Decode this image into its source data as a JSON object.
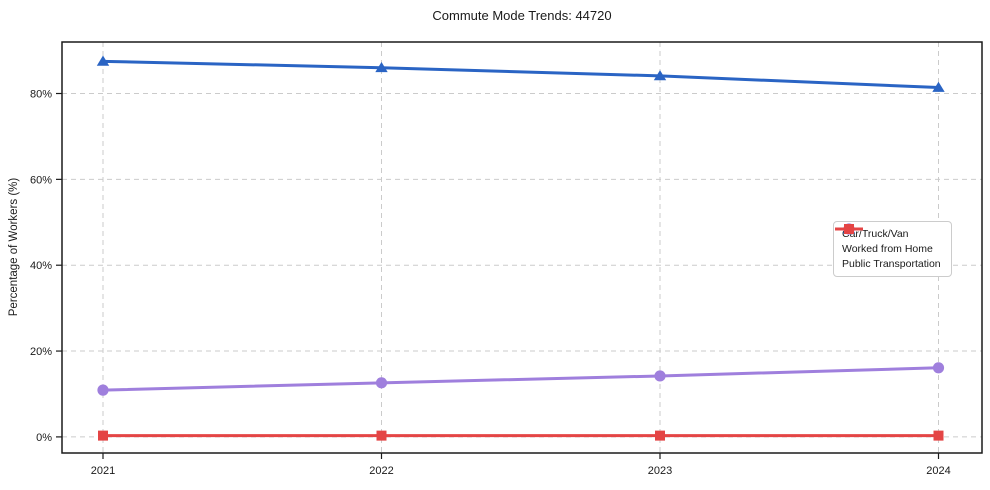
{
  "chart_data": {
    "type": "line",
    "title": "Commute Mode Trends: 44720",
    "xlabel": "",
    "ylabel": "Percentage of Workers (%)",
    "categories": [
      "2021",
      "2022",
      "2023",
      "2024"
    ],
    "series": [
      {
        "name": "Car/Truck/Van",
        "color": "#2a64c4",
        "marker": "triangle",
        "values": [
          87.5,
          86.0,
          84.1,
          81.4
        ]
      },
      {
        "name": "Worked from Home",
        "color": "#9f7fdd",
        "marker": "circle",
        "values": [
          10.9,
          12.6,
          14.2,
          16.1
        ]
      },
      {
        "name": "Public Transportation",
        "color": "#e44545",
        "marker": "square",
        "values": [
          0.3,
          0.3,
          0.3,
          0.3
        ]
      }
    ],
    "yticks": [
      {
        "value": 0,
        "label": "0%"
      },
      {
        "value": 20,
        "label": "20%"
      },
      {
        "value": 40,
        "label": "40%"
      },
      {
        "value": 60,
        "label": "60%"
      },
      {
        "value": 80,
        "label": "80%"
      }
    ],
    "ylim": [
      -3.75,
      92.0
    ],
    "grid": true,
    "legend_position": "center right"
  }
}
